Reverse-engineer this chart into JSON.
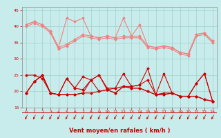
{
  "x": [
    0,
    1,
    2,
    3,
    4,
    5,
    6,
    7,
    8,
    9,
    10,
    11,
    12,
    13,
    14,
    15,
    16,
    17,
    18,
    19,
    20,
    21,
    22,
    23
  ],
  "series_light_pink_1": [
    40.5,
    41.5,
    40.5,
    38.5,
    33.5,
    42.5,
    41.5,
    42.5,
    37.0,
    36.5,
    37.0,
    36.5,
    42.5,
    37.0,
    40.5,
    34.0,
    33.5,
    34.0,
    33.5,
    32.0,
    31.5,
    37.5,
    38.0,
    35.5
  ],
  "series_light_pink_2": [
    40.5,
    41.5,
    40.5,
    38.5,
    33.5,
    34.5,
    36.0,
    37.5,
    37.0,
    36.5,
    37.0,
    36.5,
    37.0,
    37.0,
    37.0,
    34.0,
    33.5,
    34.0,
    33.5,
    32.0,
    31.5,
    37.5,
    38.0,
    35.5
  ],
  "series_light_pink_3": [
    40.0,
    41.0,
    40.0,
    38.0,
    33.0,
    34.0,
    35.5,
    37.0,
    36.5,
    36.0,
    36.5,
    36.0,
    36.5,
    36.5,
    36.5,
    33.5,
    33.0,
    33.5,
    33.0,
    31.5,
    31.0,
    37.0,
    37.5,
    35.0
  ],
  "series_dark_red_1": [
    19.5,
    23.0,
    25.0,
    19.5,
    19.0,
    24.0,
    21.0,
    24.5,
    23.5,
    25.0,
    21.0,
    21.0,
    25.5,
    21.5,
    22.0,
    27.0,
    19.0,
    25.5,
    19.5,
    18.5,
    18.5,
    22.5,
    25.5,
    17.0
  ],
  "series_dark_red_2": [
    19.5,
    23.0,
    25.0,
    19.5,
    19.0,
    24.0,
    21.0,
    20.5,
    23.5,
    25.0,
    20.5,
    21.0,
    21.5,
    21.5,
    22.0,
    23.5,
    19.0,
    19.5,
    19.5,
    18.5,
    18.5,
    22.5,
    25.5,
    17.0
  ],
  "series_dark_red_3": [
    19.5,
    23.0,
    25.0,
    19.5,
    19.0,
    19.0,
    19.0,
    19.5,
    23.5,
    20.0,
    20.5,
    19.5,
    21.5,
    21.0,
    21.0,
    20.0,
    19.0,
    19.0,
    19.5,
    18.5,
    18.5,
    18.5,
    17.5,
    17.0
  ],
  "series_dark_red_4": [
    25.0,
    25.0,
    24.0,
    19.5,
    19.0,
    19.0,
    19.0,
    19.5,
    19.5,
    20.0,
    20.5,
    19.5,
    21.5,
    21.0,
    21.0,
    20.0,
    19.0,
    19.0,
    19.5,
    18.5,
    18.5,
    18.5,
    17.5,
    17.0
  ],
  "color_light_pink": "#f08080",
  "color_dark_red": "#cc0000",
  "bg_color": "#c8ecec",
  "grid_color": "#a0d0c8",
  "text_color": "#cc0000",
  "spine_color": "#888888",
  "xlabel": "Vent moyen/en rafales ( km/h )",
  "ylim": [
    15,
    46
  ],
  "yticks": [
    15,
    20,
    25,
    30,
    35,
    40,
    45
  ],
  "xticks": [
    0,
    1,
    2,
    3,
    4,
    5,
    6,
    7,
    8,
    9,
    10,
    11,
    12,
    13,
    14,
    15,
    16,
    17,
    18,
    19,
    20,
    21,
    22,
    23
  ]
}
